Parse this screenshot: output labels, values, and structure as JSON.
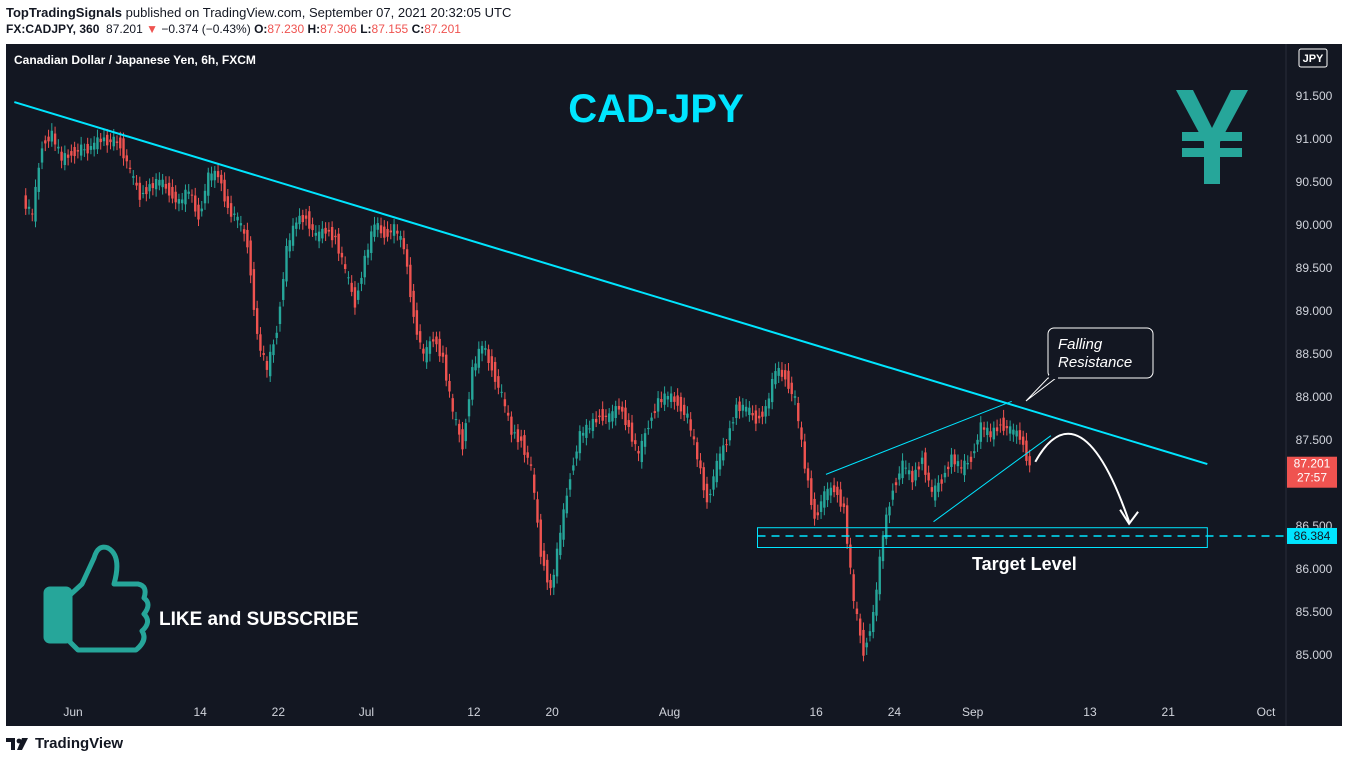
{
  "header": {
    "author": "TopTradingSignals",
    "published": " published on TradingView.com, September 07, 2021 20:32:05 UTC",
    "symbol": "FX:CADJPY, 360",
    "last": "87.201",
    "change_arrow": "▼",
    "change": "−0.374 (−0.43%)",
    "ohlc": {
      "o_label": "O:",
      "o": "87.230",
      "h_label": "H:",
      "h": "87.306",
      "l_label": "L:",
      "l": "87.155",
      "c_label": "C:",
      "c": "87.201"
    }
  },
  "colors": {
    "background": "#131722",
    "bull": "#26a69a",
    "bear": "#ef5350",
    "accent": "#00e5ff",
    "text": "#ffffff",
    "axis_text": "#d1d4dc"
  },
  "chart_data": {
    "type": "candlestick",
    "title": "CAD-JPY",
    "subtitle": "Canadian Dollar / Japanese Yen, 6h, FXCM",
    "currency_badge": "JPY",
    "ylim": [
      84.6,
      92.0
    ],
    "y_ticks": [
      "91.500",
      "91.000",
      "90.500",
      "90.000",
      "89.500",
      "89.000",
      "88.500",
      "88.000",
      "87.500",
      "86.500",
      "86.000",
      "85.500",
      "85.000"
    ],
    "x_ticks": [
      "Jun",
      "14",
      "22",
      "Jul",
      "12",
      "20",
      "Aug",
      "16",
      "24",
      "Sep",
      "13",
      "21",
      "Oct"
    ],
    "close_series": [
      [
        "2021-05-27",
        90.3
      ],
      [
        "2021-05-28",
        90.1
      ],
      [
        "2021-05-29",
        90.95
      ],
      [
        "2021-05-30",
        91.05
      ],
      [
        "2021-05-31",
        90.75
      ],
      [
        "2021-06-01",
        90.85
      ],
      [
        "2021-06-03",
        90.9
      ],
      [
        "2021-06-04",
        91.0
      ],
      [
        "2021-06-06",
        90.95
      ],
      [
        "2021-06-07",
        90.6
      ],
      [
        "2021-06-08",
        90.35
      ],
      [
        "2021-06-09",
        90.45
      ],
      [
        "2021-06-10",
        90.5
      ],
      [
        "2021-06-11",
        90.4
      ],
      [
        "2021-06-12",
        90.25
      ],
      [
        "2021-06-13",
        90.4
      ],
      [
        "2021-06-14",
        90.1
      ],
      [
        "2021-06-15",
        90.55
      ],
      [
        "2021-06-16",
        90.6
      ],
      [
        "2021-06-17",
        90.2
      ],
      [
        "2021-06-18",
        90.05
      ],
      [
        "2021-06-19",
        89.8
      ],
      [
        "2021-06-20",
        88.7
      ],
      [
        "2021-06-21",
        88.3
      ],
      [
        "2021-06-22",
        88.8
      ],
      [
        "2021-06-23",
        89.7
      ],
      [
        "2021-06-24",
        90.05
      ],
      [
        "2021-06-25",
        90.1
      ],
      [
        "2021-06-26",
        89.85
      ],
      [
        "2021-06-27",
        89.95
      ],
      [
        "2021-06-28",
        89.85
      ],
      [
        "2021-06-29",
        89.45
      ],
      [
        "2021-06-30",
        89.1
      ],
      [
        "2021-07-01",
        89.6
      ],
      [
        "2021-07-02",
        90.0
      ],
      [
        "2021-07-03",
        89.9
      ],
      [
        "2021-07-04",
        89.95
      ],
      [
        "2021-07-05",
        89.75
      ],
      [
        "2021-07-06",
        88.95
      ],
      [
        "2021-07-07",
        88.45
      ],
      [
        "2021-07-08",
        88.7
      ],
      [
        "2021-07-09",
        88.45
      ],
      [
        "2021-07-10",
        87.8
      ],
      [
        "2021-07-11",
        87.45
      ],
      [
        "2021-07-12",
        88.3
      ],
      [
        "2021-07-13",
        88.6
      ],
      [
        "2021-07-14",
        88.35
      ],
      [
        "2021-07-15",
        88.0
      ],
      [
        "2021-07-16",
        87.6
      ],
      [
        "2021-07-17",
        87.5
      ],
      [
        "2021-07-18",
        87.15
      ],
      [
        "2021-07-19",
        86.2
      ],
      [
        "2021-07-20",
        85.75
      ],
      [
        "2021-07-21",
        86.4
      ],
      [
        "2021-07-22",
        87.1
      ],
      [
        "2021-07-23",
        87.55
      ],
      [
        "2021-07-24",
        87.65
      ],
      [
        "2021-07-25",
        87.8
      ],
      [
        "2021-07-26",
        87.75
      ],
      [
        "2021-07-27",
        87.9
      ],
      [
        "2021-07-28",
        87.65
      ],
      [
        "2021-07-29",
        87.3
      ],
      [
        "2021-07-30",
        87.7
      ],
      [
        "2021-07-31",
        87.95
      ],
      [
        "2021-08-01",
        88.0
      ],
      [
        "2021-08-02",
        87.95
      ],
      [
        "2021-08-03",
        87.75
      ],
      [
        "2021-08-04",
        87.3
      ],
      [
        "2021-08-05",
        86.8
      ],
      [
        "2021-08-06",
        87.2
      ],
      [
        "2021-08-07",
        87.5
      ],
      [
        "2021-08-08",
        87.9
      ],
      [
        "2021-08-09",
        87.85
      ],
      [
        "2021-08-10",
        87.75
      ],
      [
        "2021-08-11",
        87.85
      ],
      [
        "2021-08-12",
        88.3
      ],
      [
        "2021-08-13",
        88.25
      ],
      [
        "2021-08-14",
        87.95
      ],
      [
        "2021-08-15",
        87.2
      ],
      [
        "2021-08-16",
        86.6
      ],
      [
        "2021-08-17",
        86.85
      ],
      [
        "2021-08-18",
        86.95
      ],
      [
        "2021-08-19",
        86.7
      ],
      [
        "2021-08-20",
        85.6
      ],
      [
        "2021-08-21",
        85.05
      ],
      [
        "2021-08-22",
        85.45
      ],
      [
        "2021-08-23",
        86.4
      ],
      [
        "2021-08-24",
        86.95
      ],
      [
        "2021-08-25",
        87.2
      ],
      [
        "2021-08-26",
        87.05
      ],
      [
        "2021-08-27",
        87.3
      ],
      [
        "2021-08-28",
        86.85
      ],
      [
        "2021-08-29",
        87.05
      ],
      [
        "2021-08-30",
        87.3
      ],
      [
        "2021-08-31",
        87.15
      ],
      [
        "2021-09-01",
        87.3
      ],
      [
        "2021-09-02",
        87.65
      ],
      [
        "2021-09-03",
        87.55
      ],
      [
        "2021-09-04",
        87.7
      ],
      [
        "2021-09-05",
        87.6
      ],
      [
        "2021-09-06",
        87.55
      ],
      [
        "2021-09-07",
        87.2
      ]
    ],
    "falling_resistance_points": [
      [
        "2021-05-26",
        91.43
      ],
      [
        "2021-09-25",
        87.22
      ]
    ],
    "wedge_upper_points": [
      [
        "2021-08-17",
        87.1
      ],
      [
        "2021-09-05",
        87.95
      ]
    ],
    "wedge_lower_points": [
      [
        "2021-08-28",
        86.55
      ],
      [
        "2021-09-09",
        87.55
      ]
    ],
    "target_zone": {
      "from": "2021-08-10",
      "to": "2021-09-25",
      "low": 86.25,
      "high": 86.48
    },
    "target_price": 86.384,
    "current_price": 87.201,
    "countdown": "27:57",
    "annotations": {
      "falling_resistance": [
        "Falling",
        "Resistance"
      ],
      "target_level": "Target Level",
      "cta": "LIKE and SUBSCRIBE"
    }
  },
  "footer": {
    "brand": "TradingView"
  }
}
